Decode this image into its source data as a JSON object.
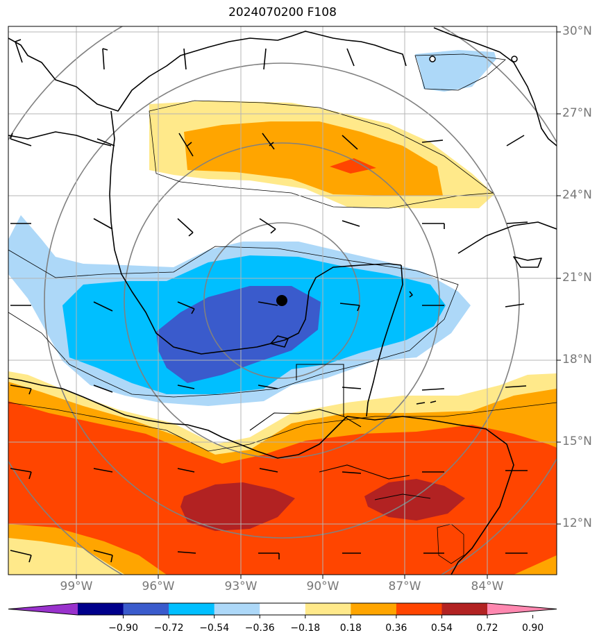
{
  "title": "2024070200 F108",
  "lat_labels": [
    "30°N",
    "27°N",
    "24°N",
    "21°N",
    "18°N",
    "15°N",
    "12°N"
  ],
  "lon_labels": [
    "99°W",
    "96°W",
    "93°W",
    "90°W",
    "87°W",
    "84°W"
  ],
  "colorbar": {
    "ticks": [
      "−0.90",
      "−0.72",
      "−0.54",
      "−0.36",
      "−0.18",
      "0.18",
      "0.36",
      "0.54",
      "0.72",
      "0.90"
    ],
    "colors": [
      "#9932cc",
      "#00008b",
      "#3a5bcc",
      "#00bfff",
      "#add8f8",
      "#ffffff",
      "#ffe98a",
      "#ffa500",
      "#ff4500",
      "#b22222",
      "#ff88b0"
    ]
  },
  "fill_colors": {
    "light_blue": "#add8f8",
    "deep_sky_blue": "#00bfff",
    "royal_blue": "#3a5bcc",
    "light_yellow": "#ffe98a",
    "orange": "#ffa500",
    "orange_red": "#ff4500",
    "firebrick": "#b22222"
  },
  "markers": [
    {
      "name": "storm-center",
      "lon": -91.5,
      "lat": 20.2
    },
    {
      "name": "station-1",
      "lon": -86.0,
      "lat": 29.0
    },
    {
      "name": "station-2",
      "lon": -83.0,
      "lat": 29.0
    }
  ]
}
